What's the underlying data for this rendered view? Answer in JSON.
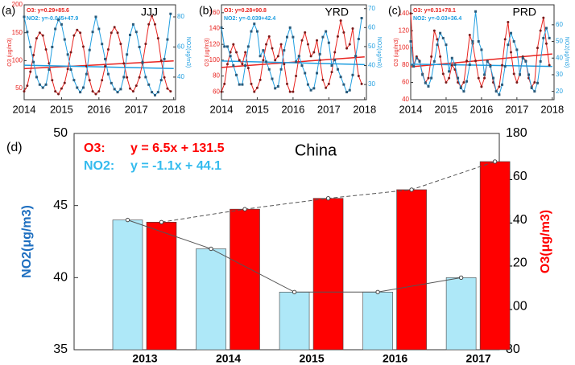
{
  "chart_data": [
    {
      "type": "line",
      "label": "(a)",
      "title": "JJJ",
      "ylabel": "O3 (ug/m3)",
      "y2label": "NO2(ug/m3)",
      "xlim": [
        2014,
        2018.05
      ],
      "xticks": [
        2014,
        2015,
        2016,
        2017,
        2018
      ],
      "ylim": [
        30,
        200
      ],
      "yticks": [
        50,
        100,
        150,
        200
      ],
      "y2lim": [
        25,
        88
      ],
      "y2ticks": [
        40,
        60,
        80
      ],
      "annotations": [
        {
          "text": "O3:  y=0.29+85.6",
          "color": "#e8231f"
        },
        {
          "text": "NO2: y=-0.045+47.9",
          "color": "#1f9ee0"
        }
      ],
      "x": [
        2014,
        2014.083,
        2014.167,
        2014.25,
        2014.333,
        2014.417,
        2014.5,
        2014.583,
        2014.667,
        2014.75,
        2014.833,
        2014.917,
        2015,
        2015.083,
        2015.167,
        2015.25,
        2015.333,
        2015.417,
        2015.5,
        2015.583,
        2015.667,
        2015.75,
        2015.833,
        2015.917,
        2016,
        2016.083,
        2016.167,
        2016.25,
        2016.333,
        2016.417,
        2016.5,
        2016.583,
        2016.667,
        2016.75,
        2016.833,
        2016.917,
        2017,
        2017.083,
        2017.167,
        2017.25,
        2017.333,
        2017.417,
        2017.5,
        2017.583,
        2017.667,
        2017.75,
        2017.833,
        2017.917
      ],
      "series": [
        {
          "name": "O3",
          "color": "#e8231f",
          "axis": "y",
          "values": [
            45,
            55,
            80,
            110,
            140,
            150,
            145,
            120,
            95,
            65,
            45,
            40,
            50,
            60,
            85,
            115,
            145,
            155,
            150,
            125,
            90,
            65,
            45,
            40,
            45,
            65,
            90,
            120,
            150,
            160,
            150,
            130,
            95,
            70,
            50,
            45,
            55,
            70,
            95,
            130,
            165,
            180,
            165,
            140,
            100,
            70,
            50,
            45
          ]
        },
        {
          "name": "NO2",
          "color": "#1f9ee0",
          "axis": "y2",
          "values": [
            80,
            70,
            60,
            50,
            40,
            35,
            33,
            35,
            45,
            60,
            72,
            78,
            75,
            65,
            55,
            45,
            38,
            33,
            30,
            33,
            42,
            58,
            70,
            80,
            72,
            62,
            52,
            42,
            36,
            32,
            30,
            32,
            40,
            55,
            68,
            75,
            70,
            60,
            50,
            40,
            35,
            30,
            28,
            30,
            38,
            52,
            65,
            82
          ]
        }
      ],
      "trends": [
        {
          "color": "#e8231f",
          "axis": "y",
          "x": [
            2014,
            2018
          ],
          "values": [
            85.6,
            99.5
          ]
        },
        {
          "color": "#1f9ee0",
          "axis": "y2",
          "x": [
            2014,
            2018
          ],
          "values": [
            47.9,
            45.7
          ]
        }
      ]
    },
    {
      "type": "line",
      "label": "(b)",
      "title": "YRD",
      "ylabel": "O3 (ug/m3)",
      "y2label": "NO2(ug/m3)",
      "xlim": [
        2014,
        2018.05
      ],
      "xticks": [
        2014,
        2015,
        2016,
        2017,
        2018
      ],
      "ylim": [
        50,
        170
      ],
      "yticks": [
        60,
        80,
        100,
        120,
        140,
        160
      ],
      "y2lim": [
        22,
        72
      ],
      "y2ticks": [
        30,
        40,
        50,
        60,
        70
      ],
      "annotations": [
        {
          "text": "O3:  y=0.28+90.8",
          "color": "#e8231f"
        },
        {
          "text": "NO2: y=-0.039+42.4",
          "color": "#1f9ee0"
        }
      ],
      "x": [
        2014,
        2014.083,
        2014.167,
        2014.25,
        2014.333,
        2014.417,
        2014.5,
        2014.583,
        2014.667,
        2014.75,
        2014.833,
        2014.917,
        2015,
        2015.083,
        2015.167,
        2015.25,
        2015.333,
        2015.417,
        2015.5,
        2015.583,
        2015.667,
        2015.75,
        2015.833,
        2015.917,
        2016,
        2016.083,
        2016.167,
        2016.25,
        2016.333,
        2016.417,
        2016.5,
        2016.583,
        2016.667,
        2016.75,
        2016.833,
        2016.917,
        2017,
        2017.083,
        2017.167,
        2017.25,
        2017.333,
        2017.417,
        2017.5,
        2017.583,
        2017.667,
        2017.75,
        2017.833,
        2017.917
      ],
      "series": [
        {
          "name": "O3",
          "color": "#e8231f",
          "axis": "y",
          "values": [
            60,
            70,
            95,
            110,
            120,
            110,
            100,
            95,
            110,
            90,
            70,
            60,
            65,
            75,
            100,
            120,
            130,
            115,
            100,
            105,
            120,
            95,
            70,
            60,
            60,
            80,
            105,
            125,
            135,
            120,
            105,
            110,
            125,
            100,
            75,
            65,
            70,
            85,
            110,
            130,
            150,
            135,
            115,
            120,
            140,
            105,
            80,
            70
          ]
        },
        {
          "name": "NO2",
          "color": "#1f9ee0",
          "axis": "y2",
          "values": [
            60,
            50,
            50,
            45,
            40,
            35,
            30,
            30,
            40,
            50,
            58,
            62,
            58,
            45,
            48,
            42,
            38,
            33,
            28,
            29,
            38,
            48,
            55,
            60,
            55,
            42,
            45,
            40,
            36,
            30,
            27,
            28,
            36,
            46,
            55,
            58,
            52,
            40,
            43,
            38,
            34,
            30,
            26,
            27,
            35,
            45,
            54,
            65
          ]
        }
      ],
      "trends": [
        {
          "color": "#e8231f",
          "axis": "y",
          "x": [
            2014,
            2018
          ],
          "values": [
            90.8,
            104.2
          ]
        },
        {
          "color": "#1f9ee0",
          "axis": "y2",
          "x": [
            2014,
            2018
          ],
          "values": [
            42.4,
            40.5
          ]
        }
      ]
    },
    {
      "type": "line",
      "label": "(c)",
      "title": "PRD",
      "ylabel": "O3 (ug/m3)",
      "y2label": "NO2(ug/m3)",
      "xlim": [
        2014,
        2018.05
      ],
      "xticks": [
        2014,
        2015,
        2016,
        2017,
        2018
      ],
      "ylim": [
        40,
        150
      ],
      "yticks": [
        40,
        60,
        80,
        100,
        120,
        140
      ],
      "y2lim": [
        15,
        72
      ],
      "y2ticks": [
        20,
        30,
        40,
        50,
        60
      ],
      "annotations": [
        {
          "text": "O3:  y=0.31+78.1",
          "color": "#e8231f"
        },
        {
          "text": "NO2: y=-0.03+36.4",
          "color": "#1f9ee0"
        }
      ],
      "x": [
        2014,
        2014.083,
        2014.167,
        2014.25,
        2014.333,
        2014.417,
        2014.5,
        2014.583,
        2014.667,
        2014.75,
        2014.833,
        2014.917,
        2015,
        2015.083,
        2015.167,
        2015.25,
        2015.333,
        2015.417,
        2015.5,
        2015.583,
        2015.667,
        2015.75,
        2015.833,
        2015.917,
        2016,
        2016.083,
        2016.167,
        2016.25,
        2016.333,
        2016.417,
        2016.5,
        2016.583,
        2016.667,
        2016.75,
        2016.833,
        2016.917,
        2017,
        2017.083,
        2017.167,
        2017.25,
        2017.333,
        2017.417,
        2017.5,
        2017.583,
        2017.667,
        2017.75,
        2017.833,
        2017.917
      ],
      "series": [
        {
          "name": "O3",
          "color": "#e8231f",
          "axis": "y",
          "values": [
            140,
            80,
            90,
            85,
            70,
            60,
            65,
            90,
            120,
            110,
            90,
            70,
            60,
            65,
            80,
            75,
            60,
            55,
            60,
            85,
            115,
            105,
            85,
            65,
            55,
            65,
            85,
            80,
            60,
            50,
            55,
            80,
            110,
            130,
            95,
            70,
            60,
            70,
            90,
            85,
            65,
            55,
            60,
            100,
            120,
            135,
            105,
            80
          ]
        },
        {
          "name": "NO2",
          "color": "#1f9ee0",
          "axis": "y2",
          "values": [
            50,
            35,
            40,
            38,
            30,
            25,
            23,
            28,
            38,
            48,
            55,
            52,
            48,
            32,
            40,
            36,
            28,
            22,
            20,
            26,
            36,
            50,
            68,
            50,
            45,
            30,
            38,
            35,
            28,
            20,
            18,
            24,
            35,
            48,
            55,
            50,
            45,
            30,
            40,
            38,
            30,
            22,
            20,
            25,
            38,
            52,
            58,
            52
          ]
        }
      ],
      "trends": [
        {
          "color": "#e8231f",
          "axis": "y",
          "x": [
            2014,
            2018
          ],
          "values": [
            78.1,
            93.0
          ]
        },
        {
          "color": "#1f9ee0",
          "axis": "y2",
          "x": [
            2014,
            2018
          ],
          "values": [
            36.4,
            35.0
          ]
        }
      ]
    },
    {
      "type": "bar",
      "label": "(d)",
      "title": "China",
      "ylabel": "NO2(μg/m3)",
      "y2label": "O3(μg/m3)",
      "categories": [
        "2013",
        "2014",
        "2015",
        "2016",
        "2017"
      ],
      "ylim": [
        35,
        50
      ],
      "yticks": [
        35,
        40,
        45,
        50
      ],
      "y2lim": [
        80,
        180
      ],
      "y2ticks": [
        80,
        100,
        120,
        140,
        160,
        180
      ],
      "annotations": [
        {
          "name": "O3:",
          "text": "y = 6.5x + 131.5",
          "color": "#ff0000"
        },
        {
          "name": "NO2:",
          "text": "y = -1.1x + 44.1",
          "color": "#33bbee"
        }
      ],
      "series": [
        {
          "name": "NO2",
          "color": "#aee8f8",
          "axis": "y",
          "line_style": "solid",
          "values": [
            44,
            42,
            39,
            39,
            40
          ]
        },
        {
          "name": "O3",
          "color": "#ff0000",
          "axis": "y2",
          "line_style": "dashed",
          "values": [
            139,
            145,
            150,
            154,
            167
          ]
        }
      ]
    }
  ]
}
